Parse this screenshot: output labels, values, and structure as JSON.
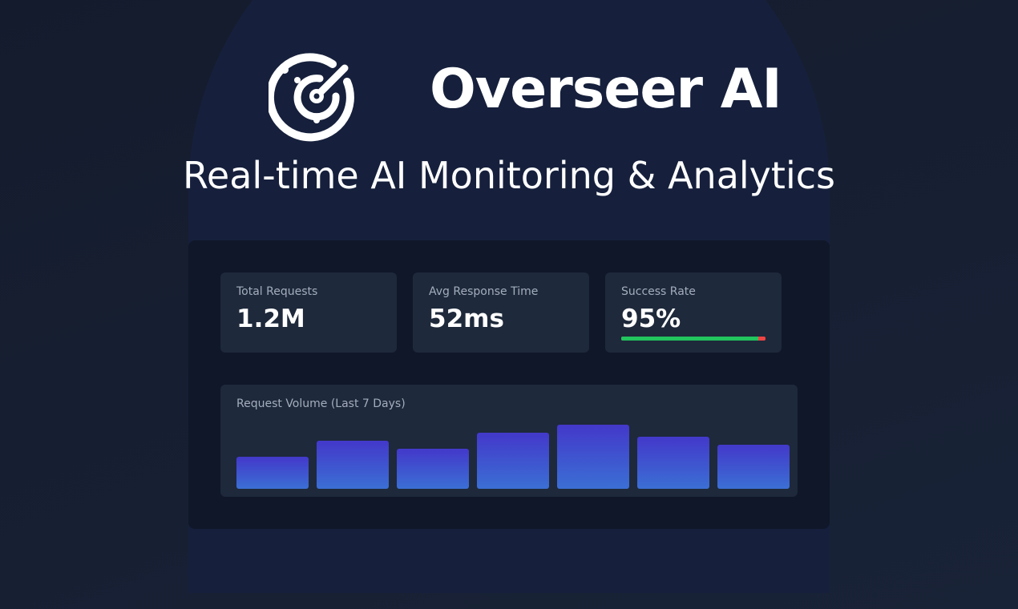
{
  "header": {
    "title": "Overseer AI",
    "subtitle": "Real-time AI Monitoring & Analytics"
  },
  "metrics": [
    {
      "label": "Total Requests",
      "value": "1.2M"
    },
    {
      "label": "Avg Response Time",
      "value": "52ms"
    },
    {
      "label": "Success Rate",
      "value": "95%",
      "progress": 95
    }
  ],
  "chart_data": {
    "type": "bar",
    "title": "Request Volume (Last 7 Days)",
    "values": [
      40,
      60,
      50,
      70,
      80,
      65,
      55
    ]
  }
}
